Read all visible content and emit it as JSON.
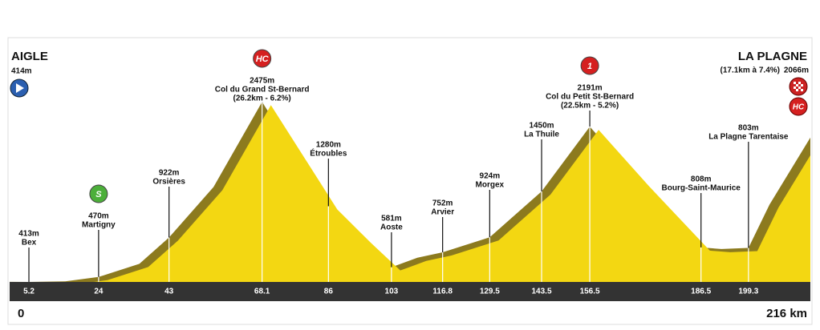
{
  "chart_data": {
    "type": "profile",
    "start": {
      "name": "AIGLE",
      "elevation": {
        "value": 414,
        "label": "414m"
      },
      "km": 0
    },
    "finish": {
      "name": "LA PLAGNE",
      "climb": "(17.1km à 7.4%)",
      "elevation": {
        "value": 2066,
        "label": "2066m"
      },
      "km_label": "216 km",
      "badge": "HC"
    },
    "x": [
      0,
      5.2,
      15,
      24,
      35,
      43,
      55,
      68.1,
      86,
      95,
      103,
      110,
      116.8,
      129.5,
      143.5,
      156.5,
      170,
      186.5,
      192,
      199.3,
      205,
      216
    ],
    "values": [
      414,
      413,
      420,
      470,
      620,
      922,
      1500,
      2475,
      1280,
      900,
      581,
      690,
      752,
      924,
      1450,
      2191,
      1550,
      808,
      790,
      803,
      1300,
      2066
    ],
    "waypoints": [
      {
        "name": "Bex",
        "km": 5.2,
        "elevation": {
          "value": 413,
          "label": "413m"
        }
      },
      {
        "name": "Martigny",
        "km": 24,
        "elevation": {
          "value": 470,
          "label": "470m"
        },
        "badge": "S"
      },
      {
        "name": "Orsières",
        "km": 43,
        "elevation": {
          "value": 922,
          "label": "922m"
        }
      },
      {
        "name": "Col du Grand St-Bernard",
        "km": 68.1,
        "elevation": {
          "value": 2475,
          "label": "2475m"
        },
        "climb": "(26.2km - 6.2%)",
        "badge": "HC"
      },
      {
        "name": "Étroubles",
        "km": 86,
        "elevation": {
          "value": 1280,
          "label": "1280m"
        }
      },
      {
        "name": "Aoste",
        "km": 103,
        "elevation": {
          "value": 581,
          "label": "581m"
        }
      },
      {
        "name": "Arvier",
        "km": 116.8,
        "elevation": {
          "value": 752,
          "label": "752m"
        }
      },
      {
        "name": "Morgex",
        "km": 129.5,
        "elevation": {
          "value": 924,
          "label": "924m"
        }
      },
      {
        "name": "La Thuile",
        "km": 143.5,
        "elevation": {
          "value": 1450,
          "label": "1450m"
        }
      },
      {
        "name": "Col du Petit St-Bernard",
        "km": 156.5,
        "elevation": {
          "value": 2191,
          "label": "2191m"
        },
        "climb": "(22.5km - 5.2%)",
        "badge": "1"
      },
      {
        "name": "Bourg-Saint-Maurice",
        "km": 186.5,
        "elevation": {
          "value": 808,
          "label": "808m"
        }
      },
      {
        "name": "La Plagne Tarentaise",
        "km": 199.3,
        "elevation": {
          "value": 803,
          "label": "803m"
        }
      }
    ]
  }
}
